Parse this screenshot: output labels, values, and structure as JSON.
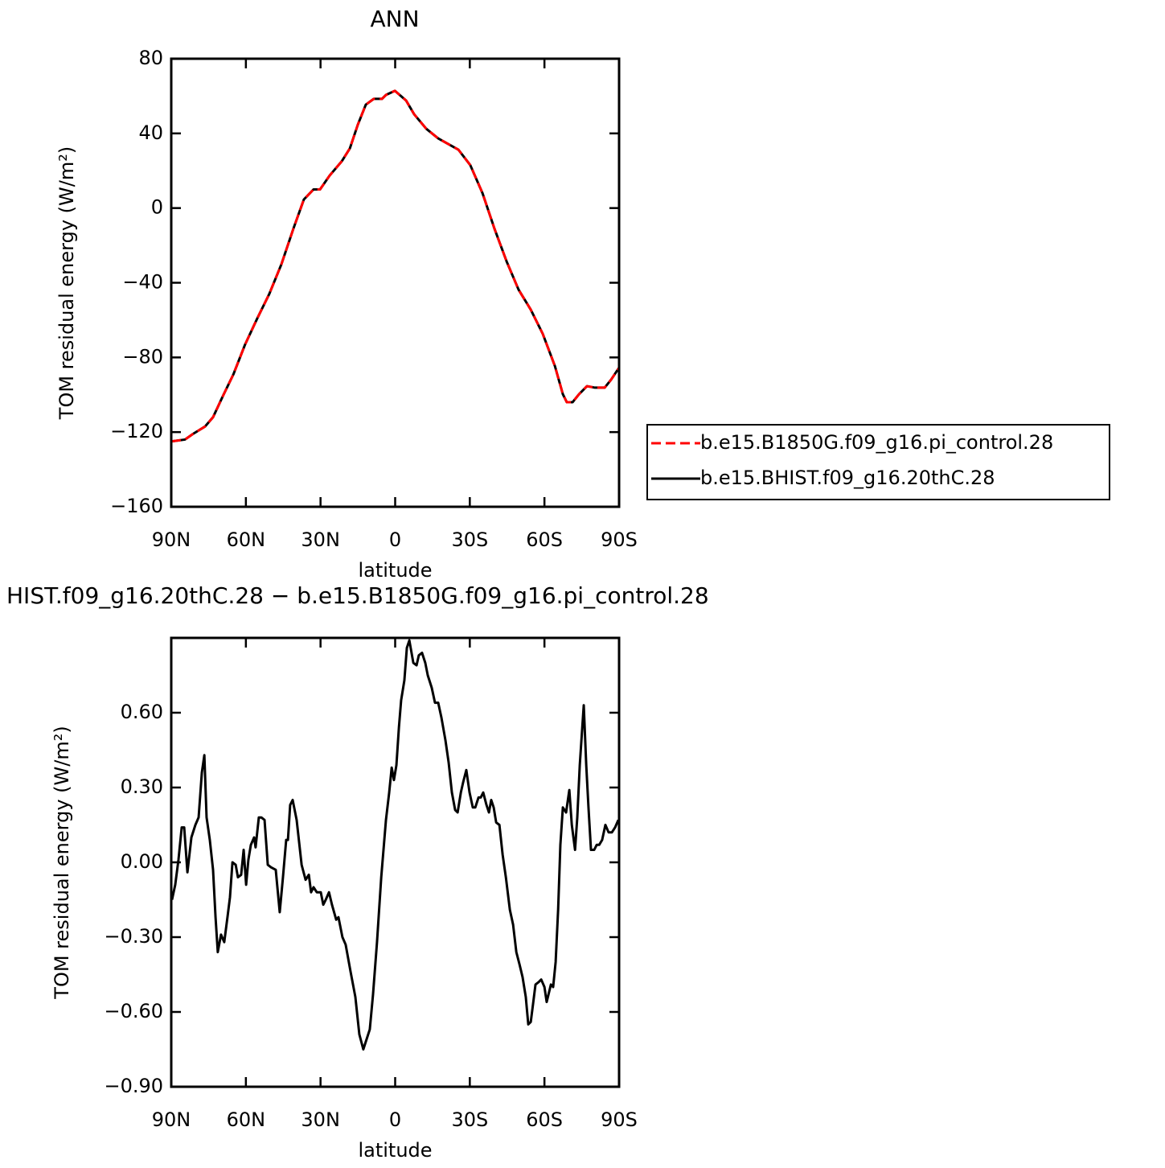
{
  "chart_data": [
    {
      "type": "line",
      "title": "ANN",
      "xlabel": "latitude",
      "ylabel": "TOM residual energy (W/m²)",
      "xlim": [
        90,
        -90
      ],
      "xticks": [
        {
          "value": 90,
          "label": "90N"
        },
        {
          "value": 60,
          "label": "60N"
        },
        {
          "value": 30,
          "label": "30N"
        },
        0,
        {
          "value": -30,
          "label": "30S"
        },
        {
          "value": -60,
          "label": "60S"
        },
        {
          "value": -90,
          "label": "90S"
        }
      ],
      "ylim": [
        -160,
        80
      ],
      "yticks": [
        {
          "value": -160,
          "label": "−160"
        },
        {
          "value": -120,
          "label": "−120"
        },
        {
          "value": -80,
          "label": "−80"
        },
        {
          "value": -40,
          "label": "−40"
        },
        0,
        40,
        80
      ],
      "legend": "right",
      "x": [
        90,
        84.5,
        81.3,
        76.4,
        73.2,
        69,
        65,
        60.3,
        55.4,
        50.6,
        45.7,
        40.9,
        36.7,
        32.8,
        30.2,
        26.3,
        21.5,
        18.2,
        15,
        11.8,
        8.6,
        5.3,
        3.7,
        0.1,
        -4.4,
        -7.6,
        -12.5,
        -17.3,
        -25.4,
        -30.2,
        -35.1,
        -39.9,
        -44.8,
        -49.6,
        -54.5,
        -59.3,
        -64.2,
        -67.4,
        -69,
        -71.3,
        -73.9,
        -77.1,
        -80.3,
        -84.2,
        -86.8,
        -90
      ],
      "series": [
        {
          "name": "b.e15.B1850G.f09_g16.pi_control.28",
          "color": "#ff0000",
          "linestyle": "dashed",
          "values": [
            -125,
            -124,
            -121,
            -117,
            -112,
            -100,
            -89,
            -73,
            -59,
            -46,
            -30,
            -11,
            4.6,
            10,
            10,
            17.5,
            25,
            32,
            44.7,
            55.4,
            58.5,
            58.5,
            60.6,
            62.8,
            57.6,
            50.3,
            42.5,
            37.3,
            31.3,
            23,
            8,
            -11,
            -28.6,
            -43.7,
            -54.4,
            -67.3,
            -84.6,
            -99.7,
            -104,
            -104,
            -99.7,
            -95.4,
            -96.2,
            -96.2,
            -91.9,
            -85.5
          ]
        },
        {
          "name": "b.e15.BHIST.f09_g16.20thC.28",
          "color": "#000000",
          "linestyle": "solid",
          "values": [
            -125,
            -124,
            -121,
            -117,
            -112,
            -100,
            -89,
            -73,
            -59,
            -46,
            -30,
            -11,
            4.6,
            10,
            10,
            17.5,
            25,
            32,
            44.7,
            55.4,
            58.5,
            58.5,
            60.6,
            62.8,
            57.6,
            50.3,
            42.5,
            37.3,
            31.3,
            23,
            8,
            -11,
            -28.6,
            -43.7,
            -54.4,
            -67.3,
            -84.6,
            -99.7,
            -104,
            -104,
            -99.7,
            -95.4,
            -96.2,
            -96.2,
            -91.9,
            -85.5
          ]
        }
      ]
    },
    {
      "type": "line",
      "title": "HIST.f09_g16.20thC.28 − b.e15.B1850G.f09_g16.pi_control.28",
      "xlabel": "latitude",
      "ylabel": "TOM residual energy (W/m²)",
      "xlim": [
        90,
        -90
      ],
      "xticks": [
        {
          "value": 90,
          "label": "90N"
        },
        {
          "value": 60,
          "label": "60N"
        },
        {
          "value": 30,
          "label": "30N"
        },
        0,
        {
          "value": -30,
          "label": "30S"
        },
        {
          "value": -60,
          "label": "60S"
        },
        {
          "value": -90,
          "label": "90S"
        }
      ],
      "ylim": [
        -0.9,
        0.9
      ],
      "yticks": [
        {
          "value": -0.9,
          "label": "−0.90"
        },
        {
          "value": -0.6,
          "label": "−0.60"
        },
        {
          "value": -0.3,
          "label": "−0.30"
        },
        {
          "value": 0,
          "label": "0.00"
        },
        {
          "value": 0.3,
          "label": "0.30"
        },
        {
          "value": 0.6,
          "label": "0.60"
        }
      ],
      "x": [
        89.7,
        88.4,
        87.1,
        85.8,
        84.8,
        83.5,
        81.9,
        80.3,
        79.0,
        77.7,
        76.7,
        75.8,
        74.5,
        73.2,
        72.2,
        71.3,
        70.0,
        68.7,
        67.4,
        66.4,
        65.4,
        64.1,
        63.2,
        61.9,
        60.9,
        59.9,
        59.0,
        58.0,
        56.7,
        56.1,
        54.8,
        53.8,
        52.5,
        51.2,
        49.9,
        48.0,
        46.4,
        45.1,
        43.8,
        43.1,
        42.2,
        41.2,
        39.6,
        37.6,
        36.0,
        34.7,
        33.8,
        32.8,
        31.5,
        29.9,
        28.9,
        27.9,
        26.6,
        25.4,
        23.7,
        22.8,
        21.2,
        19.9,
        17.9,
        16.0,
        14.4,
        12.8,
        11.5,
        10.2,
        8.9,
        7.3,
        5.6,
        3.7,
        2.4,
        1.4,
        0.5,
        -0.5,
        -1.5,
        -2.4,
        -3.7,
        -4.7,
        -5.7,
        -7.3,
        -8.6,
        -9.5,
        -10.8,
        -12.1,
        -13.1,
        -14.7,
        -16.0,
        -17.3,
        -18.6,
        -20.2,
        -21.5,
        -22.8,
        -24.1,
        -25.1,
        -26.4,
        -27.3,
        -28.6,
        -29.9,
        -31.2,
        -32.2,
        -33.5,
        -34.4,
        -35.4,
        -36.7,
        -37.7,
        -38.6,
        -39.6,
        -40.6,
        -41.9,
        -43.2,
        -44.5,
        -46.1,
        -47.4,
        -48.7,
        -50.0,
        -51.2,
        -52.5,
        -53.5,
        -54.5,
        -55.4,
        -56.4,
        -57.7,
        -58.7,
        -60.0,
        -60.9,
        -62.6,
        -63.5,
        -64.5,
        -65.5,
        -66.4,
        -67.4,
        -68.7,
        -70.0,
        -71.0,
        -72.3,
        -73.2,
        -74.2,
        -75.2,
        -75.8,
        -76.8,
        -77.7,
        -78.7,
        -80.0,
        -81.0,
        -82.0,
        -83.2,
        -84.5,
        -85.8,
        -87.1,
        -88.4,
        -89.7
      ],
      "series": [
        {
          "color": "#000000",
          "linestyle": "solid",
          "values": [
            -0.15,
            -0.09,
            0.01,
            0.14,
            0.14,
            -0.04,
            0.1,
            0.15,
            0.18,
            0.36,
            0.43,
            0.18,
            0.09,
            -0.03,
            -0.22,
            -0.36,
            -0.29,
            -0.32,
            -0.22,
            -0.14,
            0,
            -0.01,
            -0.06,
            -0.05,
            0.05,
            -0.09,
            0.01,
            0.07,
            0.1,
            0.06,
            0.18,
            0.18,
            0.17,
            -0.01,
            -0.02,
            -0.03,
            -0.2,
            -0.06,
            0.09,
            0.09,
            0.23,
            0.25,
            0.17,
            -0.01,
            -0.07,
            -0.05,
            -0.12,
            -0.1,
            -0.12,
            -0.12,
            -0.17,
            -0.15,
            -0.12,
            -0.17,
            -0.23,
            -0.22,
            -0.3,
            -0.33,
            -0.44,
            -0.54,
            -0.69,
            -0.75,
            -0.71,
            -0.67,
            -0.53,
            -0.32,
            -0.06,
            0.17,
            0.28,
            0.38,
            0.33,
            0.39,
            0.54,
            0.65,
            0.73,
            0.86,
            0.89,
            0.8,
            0.79,
            0.83,
            0.84,
            0.8,
            0.75,
            0.7,
            0.64,
            0.64,
            0.58,
            0.49,
            0.4,
            0.28,
            0.21,
            0.2,
            0.28,
            0.32,
            0.37,
            0.28,
            0.22,
            0.22,
            0.26,
            0.26,
            0.28,
            0.23,
            0.2,
            0.25,
            0.22,
            0.16,
            0.15,
            0.03,
            -0.06,
            -0.19,
            -0.25,
            -0.36,
            -0.41,
            -0.46,
            -0.54,
            -0.65,
            -0.64,
            -0.57,
            -0.49,
            -0.48,
            -0.47,
            -0.5,
            -0.56,
            -0.49,
            -0.5,
            -0.4,
            -0.19,
            0.07,
            0.22,
            0.2,
            0.29,
            0.15,
            0.05,
            0.18,
            0.39,
            0.54,
            0.63,
            0.39,
            0.22,
            0.05,
            0.05,
            0.07,
            0.07,
            0.09,
            0.15,
            0.12,
            0.12,
            0.14,
            0.17
          ]
        }
      ]
    }
  ]
}
